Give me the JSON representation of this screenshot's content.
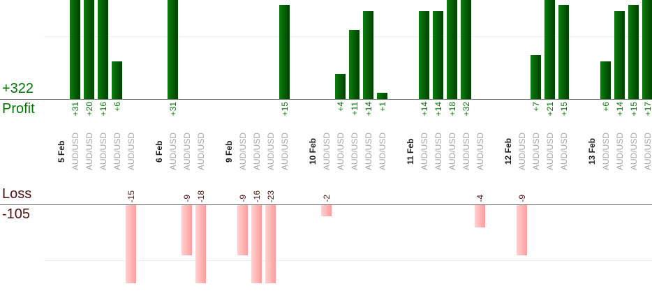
{
  "chart_data": {
    "type": "bar",
    "symbol": "AUD/USD",
    "groups": [
      {
        "date": "5 Feb",
        "values": [
          31,
          20,
          16,
          6,
          -15
        ]
      },
      {
        "date": "6 Feb",
        "values": [
          31,
          -9,
          -18
        ]
      },
      {
        "date": "9 Feb",
        "values": [
          -9,
          -16,
          -23,
          15
        ]
      },
      {
        "date": "10 Feb",
        "values": [
          -2,
          4,
          11,
          14,
          1
        ]
      },
      {
        "date": "11 Feb",
        "values": [
          14,
          14,
          18,
          32,
          -4
        ]
      },
      {
        "date": "12 Feb",
        "values": [
          -9,
          7,
          21,
          15
        ]
      },
      {
        "date": "13 Feb",
        "values": [
          6,
          14,
          15,
          17
        ]
      }
    ],
    "profit_label": "Profit",
    "profit_total": "+322",
    "loss_label": "Loss",
    "loss_total": "-105",
    "axes": {
      "profit_gridline_value": 10,
      "loss_gridline_value": -10,
      "profit_visible_max": 15.8,
      "loss_visible_min": -14,
      "grid": "on",
      "bars_clipped_at_edges": true
    },
    "colors": {
      "profit_bar_left": "#0c7c0c",
      "profit_bar_right": "#014001",
      "loss_bar_left": "#ffd2d2",
      "loss_bar_right": "#ff9c9c",
      "profit_text": "#007600",
      "loss_text": "#530f0f",
      "date_text": "#1f1f1f",
      "symbol_text": "#a6a6a6",
      "axis_line": "#6f6f6f",
      "gridline": "#ededed"
    }
  }
}
